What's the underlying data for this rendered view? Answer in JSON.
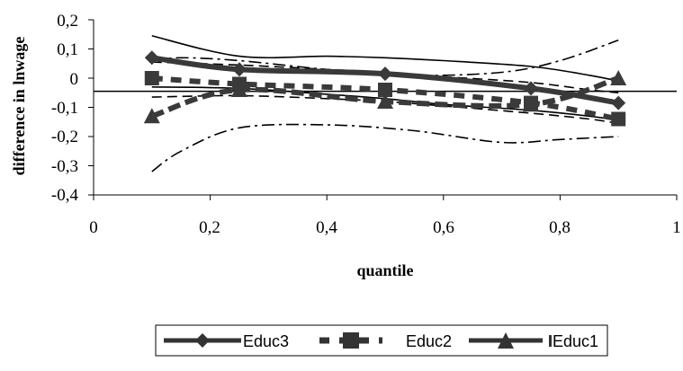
{
  "chart_data": {
    "type": "line",
    "xlabel": "quantile",
    "ylabel": "difference in lnwage",
    "xlim": [
      0,
      1
    ],
    "ylim": [
      -0.4,
      0.2
    ],
    "x_ticks": [
      "0",
      "0,2",
      "0,4",
      "0,6",
      "0,8",
      "1"
    ],
    "y_ticks": [
      "0,2",
      "0,1",
      "0",
      "-0,1",
      "-0,2",
      "-0,3",
      "-0,4"
    ],
    "grid": false,
    "legend_position": "bottom",
    "reference_line_y": -0.045,
    "x": [
      0.1,
      0.25,
      0.5,
      0.75,
      0.9
    ],
    "series": [
      {
        "name": "Educ3",
        "values": [
          0.07,
          0.03,
          0.015,
          -0.035,
          -0.085
        ],
        "marker": "diamond",
        "style": "solid-thick"
      },
      {
        "name": "Educ2",
        "values": [
          0.0,
          -0.02,
          -0.04,
          -0.085,
          -0.14
        ],
        "marker": "square",
        "style": "dashed-thick"
      },
      {
        "name": "Educ1",
        "values": [
          -0.13,
          -0.04,
          -0.08,
          -0.09,
          0.0
        ],
        "marker": "triangle",
        "style": "dashed-thick"
      }
    ],
    "bands": [
      {
        "x": [
          0.1,
          0.25,
          0.4,
          0.5,
          0.6,
          0.75,
          0.85,
          0.9
        ],
        "upper": [
          0.145,
          0.075,
          0.075,
          0.07,
          0.06,
          0.04,
          0.01,
          -0.01
        ],
        "lower": [
          -0.03,
          -0.035,
          -0.055,
          -0.07,
          -0.09,
          -0.11,
          -0.13,
          -0.145
        ],
        "style": "solid-thin"
      },
      {
        "x": [
          0.1,
          0.25,
          0.4,
          0.5,
          0.6,
          0.75,
          0.85,
          0.9
        ],
        "upper": [
          0.055,
          0.045,
          0.03,
          0.02,
          0.005,
          -0.015,
          -0.04,
          -0.05
        ],
        "lower": [
          -0.065,
          -0.06,
          -0.07,
          -0.08,
          -0.095,
          -0.12,
          -0.14,
          -0.155
        ],
        "style": "dashed-thin"
      },
      {
        "x": [
          0.1,
          0.15,
          0.25,
          0.4,
          0.55,
          0.7,
          0.8,
          0.9
        ],
        "upper": [
          0.06,
          0.07,
          0.06,
          0.03,
          0.01,
          0.02,
          0.06,
          0.13
        ],
        "lower": [
          -0.32,
          -0.25,
          -0.17,
          -0.16,
          -0.18,
          -0.22,
          -0.21,
          -0.2
        ],
        "style": "dashdot-thin"
      }
    ]
  }
}
